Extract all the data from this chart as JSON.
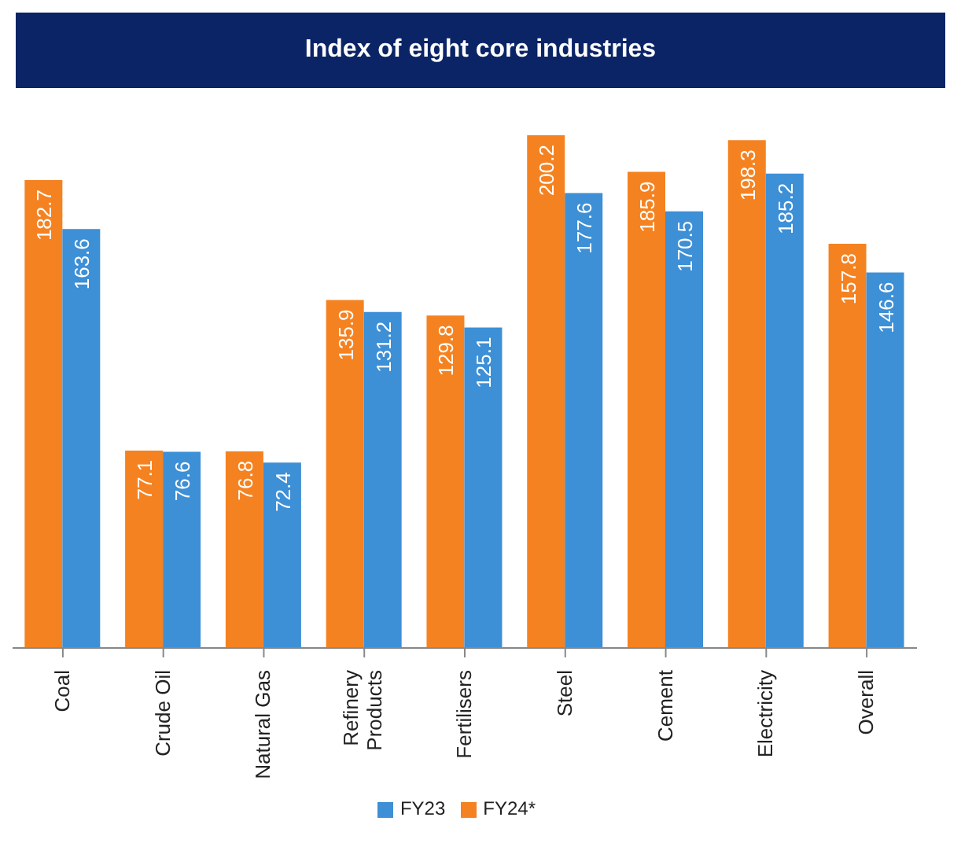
{
  "chart_data": {
    "type": "bar",
    "title": "Index of eight core industries",
    "categories": [
      "Coal",
      "Crude Oil",
      "Natural Gas",
      "Refinery Products",
      "Fertilisers",
      "Steel",
      "Cement",
      "Electricity",
      "Overall"
    ],
    "series": [
      {
        "name": "FY24*",
        "color": "#f58220",
        "values": [
          182.7,
          77.1,
          76.8,
          135.9,
          129.8,
          200.2,
          185.9,
          198.3,
          157.8
        ]
      },
      {
        "name": "FY23",
        "color": "#3d8fd6",
        "values": [
          163.6,
          76.6,
          72.4,
          131.2,
          125.1,
          177.6,
          170.5,
          185.2,
          146.6
        ]
      }
    ],
    "data_labels": true,
    "legend": "bottom",
    "grid": false,
    "tick_labels": "x"
  }
}
